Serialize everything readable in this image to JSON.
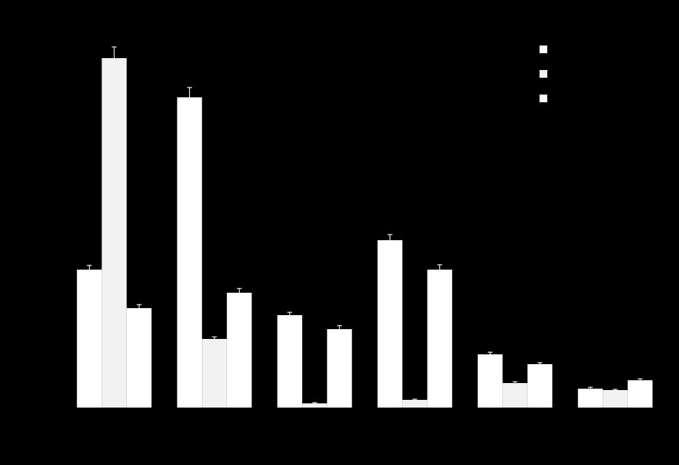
{
  "chart_data": {
    "type": "bar",
    "categories": [
      null,
      null,
      null,
      null,
      null,
      null
    ],
    "series": [
      {
        "color": "#ffffff",
        "values": [
          39.4,
          88.6,
          26.4,
          47.8,
          15.2,
          5.4
        ],
        "errors": [
          1.2,
          2.8,
          0.8,
          1.6,
          0.6,
          0.4
        ]
      },
      {
        "color": "#f2f2f2",
        "values": [
          99.8,
          19.6,
          1.2,
          2.2,
          7,
          5
        ],
        "errors": [
          3.2,
          0.6,
          0.2,
          0.2,
          0.4,
          0.2
        ]
      },
      {
        "color": "#ffffff",
        "values": [
          28.4,
          32.8,
          22.4,
          39.4,
          12.4,
          7.8
        ],
        "errors": [
          1,
          1.2,
          1,
          1.4,
          0.4,
          0.4
        ]
      }
    ],
    "ylim": [
      0,
      104
    ],
    "legend": "upper right",
    "grid": false
  }
}
